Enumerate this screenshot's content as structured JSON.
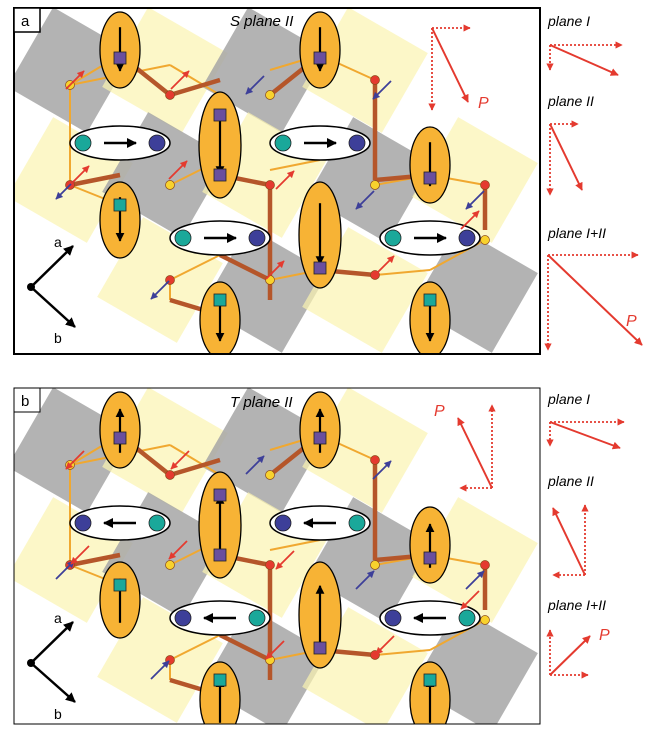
{
  "panels": [
    {
      "id": "a",
      "label": "a",
      "title": "S plane II",
      "chain_arrow": "right",
      "cap_arrow": "down",
      "net_label": "P",
      "side": [
        {
          "label": "plane I"
        },
        {
          "label": "plane II"
        },
        {
          "label": "plane I+II",
          "p_label": "P"
        }
      ]
    },
    {
      "id": "b",
      "label": "b",
      "title": "T plane II",
      "chain_arrow": "left",
      "cap_arrow": "up",
      "net_label": "P",
      "side": [
        {
          "label": "plane I"
        },
        {
          "label": "plane II"
        },
        {
          "label": "plane I+II",
          "p_label": "P"
        }
      ]
    }
  ],
  "axes": {
    "a": "a",
    "b": "b"
  },
  "colors": {
    "orange": "#f7b335",
    "gray": "#a6a6a6",
    "yellow": "#fbf3b0",
    "cyan": "#1aa89a",
    "blue": "#3d3f99",
    "red": "#e43a2f",
    "brown": "#b5562a",
    "purple": "#6a4f9e"
  }
}
